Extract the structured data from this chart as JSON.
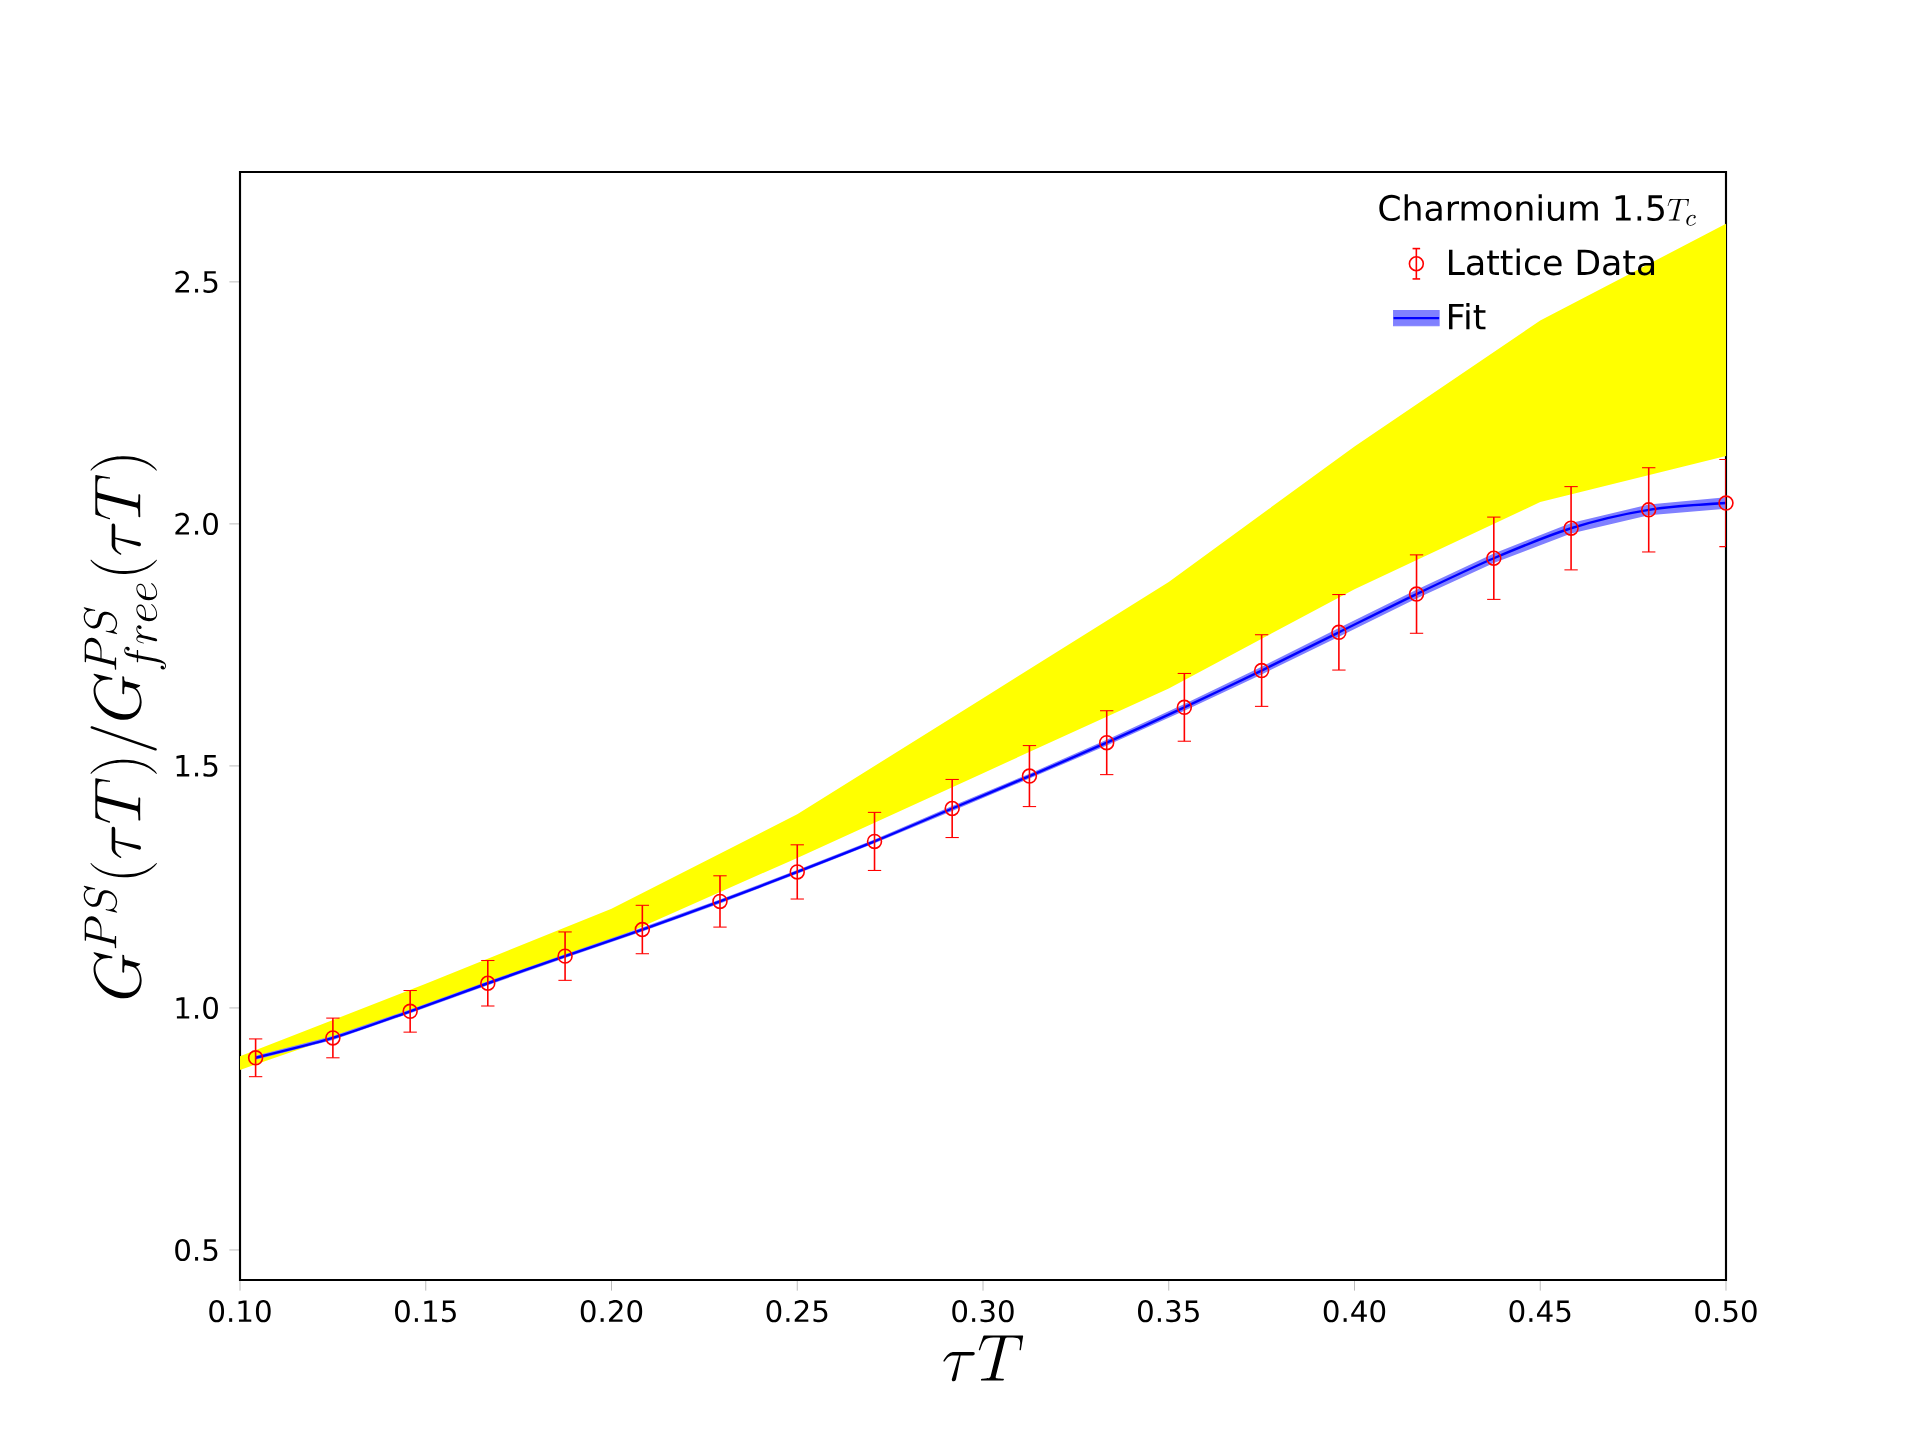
{
  "chart_data": {
    "type": "scatter",
    "xlabel": "\\tau T",
    "ylabel": "G^{PS}(\\tau T)/G^{PS}_{free}(\\tau T)",
    "legend_title": "\\mbox{Charmonium 1.5}T_{c}",
    "legend": "top right",
    "xlim": [
      0.1,
      0.5
    ],
    "ylim": [
      0.438,
      2.727
    ],
    "xticks": [
      {
        "value": 0.1,
        "label": "0.10"
      },
      {
        "value": 0.15,
        "label": "0.15"
      },
      {
        "value": 0.2,
        "label": "0.20"
      },
      {
        "value": 0.25,
        "label": "0.25"
      },
      {
        "value": 0.3,
        "label": "0.30"
      },
      {
        "value": 0.35,
        "label": "0.35"
      },
      {
        "value": 0.4,
        "label": "0.40"
      },
      {
        "value": 0.45,
        "label": "0.45"
      },
      {
        "value": 0.5,
        "label": "0.50"
      }
    ],
    "yticks": [
      {
        "value": 0.5,
        "label": "0.5"
      },
      {
        "value": 1.0,
        "label": "1.0"
      },
      {
        "value": 1.5,
        "label": "1.5"
      },
      {
        "value": 2.0,
        "label": "2.0"
      },
      {
        "value": 2.5,
        "label": "2.5"
      }
    ],
    "series": [
      {
        "type": "area",
        "color": "#ffff00",
        "x": [
          0.1,
          0.15,
          0.2,
          0.25,
          0.3,
          0.35,
          0.4,
          0.45,
          0.5
        ],
        "lower": [
          0.872,
          1.005,
          1.14,
          1.31,
          1.485,
          1.66,
          1.865,
          2.045,
          2.14
        ],
        "upper": [
          0.9,
          1.05,
          1.205,
          1.4,
          1.64,
          1.88,
          2.16,
          2.42,
          2.62
        ],
        "values": [
          null,
          null,
          null,
          null,
          null,
          null,
          null,
          null,
          null
        ]
      },
      {
        "name": "Fit",
        "type": "line",
        "color": "#0000ff",
        "x": [
          0.1042,
          0.125,
          0.1458,
          0.1667,
          0.1875,
          0.2083,
          0.2292,
          0.25,
          0.2708,
          0.2917,
          0.3125,
          0.3333,
          0.3542,
          0.375,
          0.3958,
          0.4167,
          0.4375,
          0.4583,
          0.4792,
          0.5
        ],
        "values": [
          0.897,
          0.938,
          0.993,
          1.051,
          1.107,
          1.162,
          1.22,
          1.281,
          1.344,
          1.412,
          1.479,
          1.548,
          1.621,
          1.697,
          1.776,
          1.855,
          1.929,
          1.991,
          2.029,
          2.043
        ],
        "lower": [
          0.893,
          0.934,
          0.989,
          1.047,
          1.103,
          1.158,
          1.216,
          1.277,
          1.34,
          1.407,
          1.474,
          1.542,
          1.614,
          1.689,
          1.767,
          1.846,
          1.919,
          1.98,
          2.018,
          2.031
        ],
        "upper": [
          0.901,
          0.942,
          0.997,
          1.055,
          1.111,
          1.166,
          1.224,
          1.285,
          1.348,
          1.417,
          1.484,
          1.554,
          1.628,
          1.705,
          1.785,
          1.864,
          1.939,
          2.002,
          2.04,
          2.055
        ]
      },
      {
        "name": "Lattice Data",
        "color": "#ff0000",
        "marker": "circle",
        "x": [
          0.1042,
          0.125,
          0.1458,
          0.1667,
          0.1875,
          0.2083,
          0.2292,
          0.25,
          0.2708,
          0.2917,
          0.3125,
          0.3333,
          0.3542,
          0.375,
          0.3958,
          0.4167,
          0.4375,
          0.4583,
          0.4792,
          0.5
        ],
        "values": [
          0.897,
          0.938,
          0.993,
          1.051,
          1.107,
          1.162,
          1.22,
          1.281,
          1.344,
          1.412,
          1.479,
          1.548,
          1.621,
          1.697,
          1.776,
          1.855,
          1.929,
          1.991,
          2.029,
          2.043
        ],
        "errors": [
          0.039,
          0.041,
          0.043,
          0.047,
          0.05,
          0.05,
          0.053,
          0.056,
          0.06,
          0.06,
          0.063,
          0.066,
          0.07,
          0.074,
          0.078,
          0.081,
          0.085,
          0.086,
          0.087,
          0.09
        ]
      }
    ]
  }
}
